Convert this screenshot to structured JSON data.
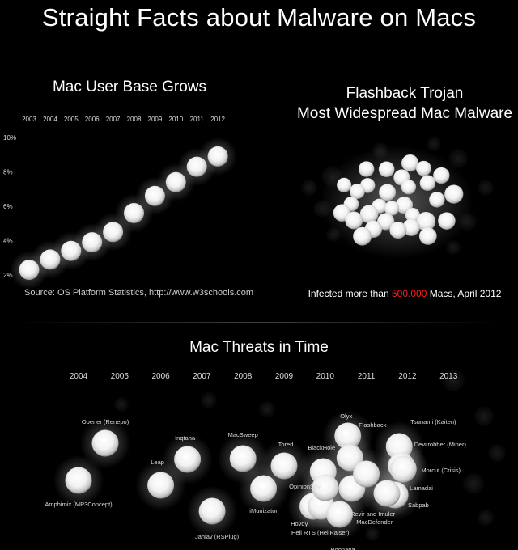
{
  "title": "Straight Facts about Malware on Macs",
  "user_base": {
    "title": "Mac User Base Grows",
    "source": "Source: OS Platform Statistics, http://www.w3schools.com"
  },
  "flashback": {
    "title_line1": "Flashback Trojan",
    "title_line2": "Most Widespread Mac Malware",
    "infected_prefix": "Infected more than ",
    "infected_number": "500.000",
    "infected_suffix": " Macs, April 2012"
  },
  "threats": {
    "title": "Mac Threats in Time"
  },
  "colors": {
    "background": "#000000",
    "bubble": "#ffffff",
    "highlight": "#ff2020"
  },
  "chart_data": [
    {
      "type": "scatter",
      "title": "Mac User Base Grows",
      "x": [
        "2003",
        "2004",
        "2005",
        "2006",
        "2007",
        "2008",
        "2009",
        "2010",
        "2011",
        "2012"
      ],
      "y": [
        2.3,
        2.9,
        3.4,
        3.9,
        4.5,
        5.6,
        6.6,
        7.4,
        8.3,
        8.9
      ],
      "yticks": [
        "2%",
        "4%",
        "6%",
        "8%",
        "10%"
      ],
      "ylim": [
        2,
        10
      ],
      "xlabel": "",
      "ylabel": "",
      "grid": false
    },
    {
      "type": "scatter",
      "title": "Mac Threats in Time",
      "x_axis": [
        "2004",
        "2005",
        "2006",
        "2007",
        "2008",
        "2009",
        "2010",
        "2011",
        "2012",
        "2013"
      ],
      "points": [
        {
          "label": "Amphimix (MP3Concept)",
          "year": 2004.0
        },
        {
          "label": "Opener (Renepo)",
          "year": 2004.65
        },
        {
          "label": "Leap",
          "year": 2006.0
        },
        {
          "label": "Inqtana",
          "year": 2006.65
        },
        {
          "label": "Jahlav (RSPlug)",
          "year": 2007.25
        },
        {
          "label": "MacSweep",
          "year": 2008.0
        },
        {
          "label": "iMunizator",
          "year": 2008.5
        },
        {
          "label": "Tored",
          "year": 2009.0
        },
        {
          "label": "BlackHole",
          "year": 2009.95
        },
        {
          "label": "OpinionSpy",
          "year": 2009.7
        },
        {
          "label": "Hovdy",
          "year": 2009.9
        },
        {
          "label": "Hell RTS (HellRaiser)",
          "year": 2010.0
        },
        {
          "label": "Boonana",
          "year": 2010.35
        },
        {
          "label": "Olyx",
          "year": 2010.55
        },
        {
          "label": "Flashback",
          "year": 2010.6
        },
        {
          "label": "MacDefender",
          "year": 2010.65
        },
        {
          "label": "Revir and Imuler",
          "year": 2011.0
        },
        {
          "label": "Tsunami (Kaiten)",
          "year": 2011.8
        },
        {
          "label": "Devilrobber (Miner)",
          "year": 2011.85
        },
        {
          "label": "Morcut (Crisis)",
          "year": 2011.9
        },
        {
          "label": "Lamadai",
          "year": 2011.7
        },
        {
          "label": "Sabpab",
          "year": 2011.5
        }
      ]
    }
  ]
}
